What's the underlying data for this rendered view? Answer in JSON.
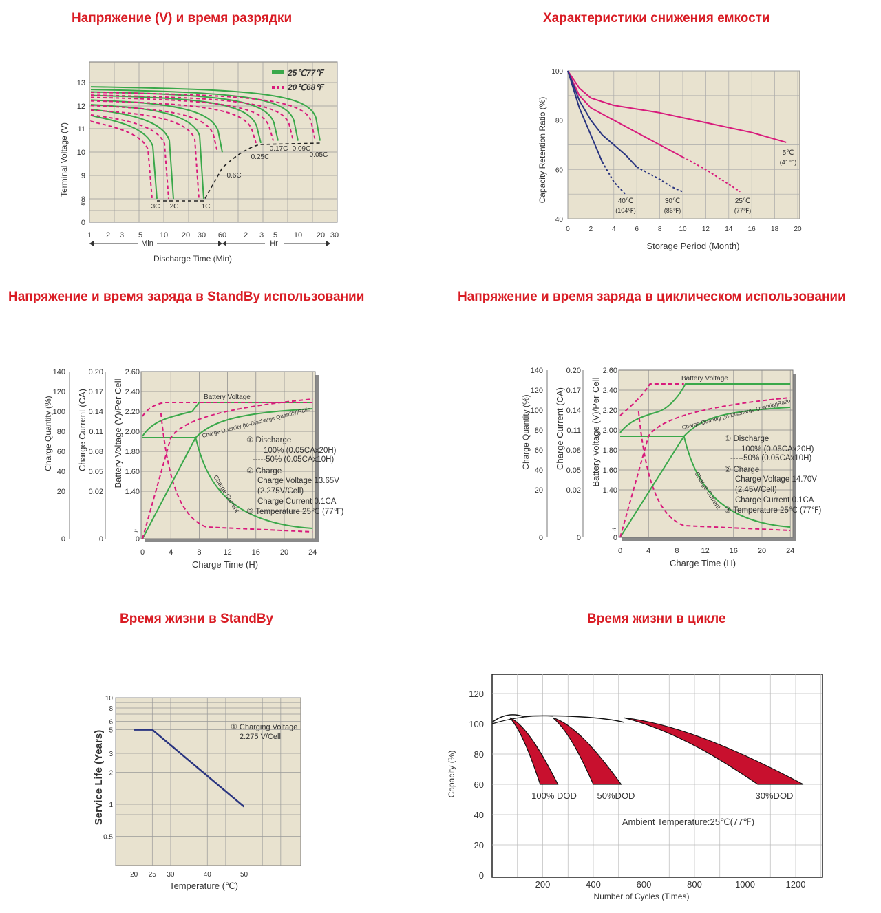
{
  "titles": {
    "discharge": "Напряжение (V) и время разрядки",
    "capacity_loss": "Характеристики снижения емкости",
    "standby_charge": "Напряжение и время заряда в StandBy использовании",
    "cyclic_charge": "Напряжение и время заряда в циклическом использовании",
    "standby_life": "Время жизни в StandBy",
    "cycle_life": "Время жизни в цикле"
  },
  "colors": {
    "title": "#d91c24",
    "green": "#3aa84a",
    "magenta": "#d81b7c",
    "navy": "#2a3580",
    "grid_bg": "#e8e2cf",
    "cycle_red": "#c8102e"
  },
  "chart_data": [
    {
      "id": "discharge",
      "type": "line",
      "xlabel": "Discharge Time (Min)",
      "ylabel": "Terminal Voltage (V)",
      "y_ticks": [
        "13",
        "12",
        "11",
        "10",
        "9",
        "8",
        "0"
      ],
      "x_ticks": [
        "1",
        "2",
        "3",
        "5",
        "10",
        "20",
        "30",
        "60",
        "2",
        "3",
        "5",
        "10",
        "20",
        "30"
      ],
      "x_unit_labels": [
        "Min",
        "Hr"
      ],
      "legend": [
        {
          "label": "25℃77℉",
          "color": "#3aa84a",
          "style": "solid"
        },
        {
          "label": "20℃68℉",
          "color": "#d81b7c",
          "style": "dashed"
        }
      ],
      "legend_placement": "top-right",
      "curve_labels": [
        "3C",
        "2C",
        "1C",
        "0.6C",
        "0.25C",
        "0.17C",
        "0.09C",
        "0.05C"
      ],
      "grid": true
    },
    {
      "id": "capacity_loss",
      "type": "line",
      "xlabel": "Storage Period (Month)",
      "ylabel": "Capacity Retention Ratio (%)",
      "x": [
        0,
        2,
        4,
        6,
        8,
        10,
        12,
        14,
        16,
        18,
        20
      ],
      "y_ticks": [
        100,
        80,
        60,
        40
      ],
      "xlim": [
        0,
        20
      ],
      "ylim": [
        40,
        100
      ],
      "series": [
        {
          "name": "5℃ (41℉)",
          "points": [
            [
              0,
              100
            ],
            [
              1,
              93
            ],
            [
              2,
              89
            ],
            [
              4,
              86
            ],
            [
              8,
              83
            ],
            [
              12,
              79
            ],
            [
              16,
              75
            ],
            [
              19,
              71
            ]
          ]
        },
        {
          "name": "25℃ (77℉)",
          "points": [
            [
              0,
              100
            ],
            [
              1,
              90
            ],
            [
              2,
              85
            ],
            [
              4,
              80
            ],
            [
              6,
              75
            ],
            [
              8,
              70
            ],
            [
              10,
              65
            ],
            [
              12,
              60
            ],
            [
              14,
              54
            ],
            [
              15,
              51
            ]
          ]
        },
        {
          "name": "30℃ (86℉)",
          "points": [
            [
              0,
              100
            ],
            [
              1,
              88
            ],
            [
              2,
              80
            ],
            [
              3,
              74
            ],
            [
              4,
              70
            ],
            [
              5,
              66
            ],
            [
              6,
              61
            ],
            [
              8,
              56
            ],
            [
              9,
              53
            ],
            [
              10,
              51
            ]
          ]
        },
        {
          "name": "40℃ (104℉)",
          "points": [
            [
              0,
              100
            ],
            [
              1,
              85
            ],
            [
              2,
              74
            ],
            [
              3,
              63
            ],
            [
              4,
              55
            ],
            [
              5,
              50
            ]
          ]
        }
      ],
      "grid": true
    },
    {
      "id": "standby_charge",
      "type": "line",
      "xlabel": "Charge Time (H)",
      "ylabel_left": "Charge Quantity (%)",
      "ylabel_mid": "Charge Current (CA)",
      "ylabel_right": "Battery Voltage (V)/Per Cell",
      "x": [
        0,
        4,
        8,
        12,
        16,
        20,
        24
      ],
      "axis_q": [
        "140",
        "120",
        "100",
        "80",
        "60",
        "40",
        "20",
        "0"
      ],
      "axis_c": [
        "0.20",
        "0.17",
        "0.14",
        "0.11",
        "0.08",
        "0.05",
        "0.02",
        "0"
      ],
      "axis_v": [
        "2.60",
        "2.40",
        "2.20",
        "2.00",
        "1.80",
        "1.60",
        "1.40"
      ],
      "curve_labels": [
        "Battery Voltage",
        "Charge Quantity (to-Discharge Quantity)Ratio",
        "Charge Current"
      ],
      "notes": [
        "① Discharge",
        "100% (0.05CAx20H)",
        "-----50% (0.05CAx10H)",
        "② Charge",
        "Charge Voltage 13.65V",
        "(2.275V/Cell)",
        "Charge Current 0.1CA",
        "③ Temperature 25℃ (77℉)"
      ],
      "grid": true
    },
    {
      "id": "cyclic_charge",
      "type": "line",
      "xlabel": "Charge Time (H)",
      "ylabel_left": "Charge Quantity (%)",
      "ylabel_mid": "Charge Current (CA)",
      "ylabel_right": "Battery Voltage (V)/Per Cell",
      "x": [
        0,
        4,
        8,
        12,
        16,
        20,
        24
      ],
      "axis_q": [
        "140",
        "120",
        "100",
        "80",
        "60",
        "40",
        "20",
        "0"
      ],
      "axis_c": [
        "0.20",
        "0.17",
        "0.14",
        "0.11",
        "0.08",
        "0.05",
        "0.02",
        "0"
      ],
      "axis_v": [
        "2.60",
        "2.40",
        "2.20",
        "2.00",
        "1.80",
        "1.60",
        "1.40"
      ],
      "curve_labels": [
        "Battery Voltage",
        "Charge Quantity (to-Discharge Quantity)Ratio",
        "Charge Current"
      ],
      "notes": [
        "① Discharge",
        "100% (0.05CAx20H)",
        "-----50% (0.05CAx10H)",
        "② Charge",
        "Charge Voltage 14.70V",
        "(2.45V/Cell)",
        "Charge Current 0.1CA",
        "③ Temperature 25℃ (77℉)"
      ],
      "grid": true
    },
    {
      "id": "standby_life",
      "type": "line",
      "xlabel": "Temperature (℃)",
      "ylabel": "Service Life (Years)",
      "yscale": "log",
      "y_ticks": [
        "10",
        "8",
        "6",
        "5",
        "3",
        "2",
        "1",
        "0.5"
      ],
      "x_ticks": [
        "20",
        "25",
        "30",
        "40",
        "50"
      ],
      "series": [
        {
          "points": [
            [
              20,
              5
            ],
            [
              25,
              5
            ],
            [
              50,
              0.95
            ]
          ]
        }
      ],
      "notes": [
        "① Charging Voltage",
        "2.275 V/Cell"
      ],
      "grid": true
    },
    {
      "id": "cycle_life",
      "type": "area",
      "xlabel": "Number of Cycles (Times)",
      "ylabel": "Capacity (%)",
      "x": [
        200,
        400,
        600,
        800,
        1000,
        1200
      ],
      "y_ticks": [
        120,
        100,
        80,
        60,
        40,
        20,
        0
      ],
      "xlim": [
        0,
        1300
      ],
      "ylim": [
        0,
        120
      ],
      "bands": [
        {
          "name": "100% DOD",
          "start": 70,
          "end_min": 190,
          "end_max": 260
        },
        {
          "name": "50%DOD",
          "start": 240,
          "end_min": 400,
          "end_max": 510
        },
        {
          "name": "30%DOD",
          "start": 520,
          "end_min": 1050,
          "end_max": 1230
        }
      ],
      "note": "Ambient Temperature:25℃(77℉)",
      "grid": true
    }
  ]
}
